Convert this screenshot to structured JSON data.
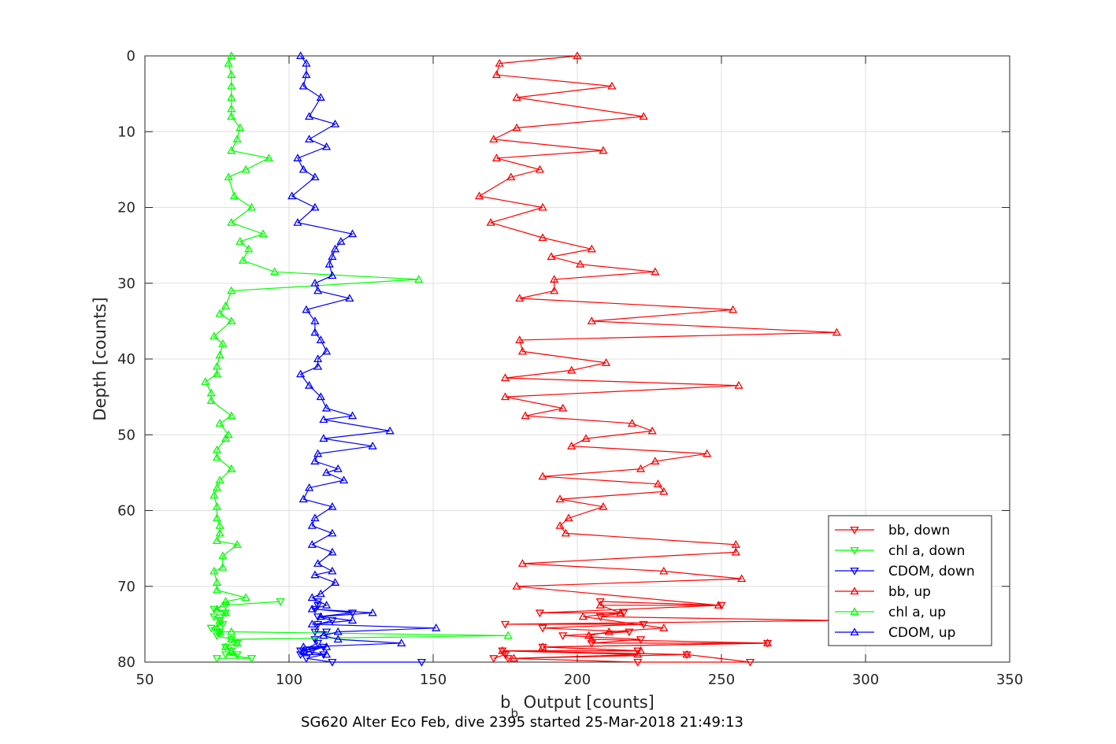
{
  "chart_data": {
    "type": "line",
    "title": "",
    "xlabel": "b",
    "xlabel_sub": "b",
    "xlabel_rest": " Output [counts]",
    "ylabel": "Depth [counts]",
    "caption": "SG620 Alter Eco Feb, dive 2395 started 25-Mar-2018 21:49:13",
    "xlim": [
      50,
      350
    ],
    "ylim": [
      0,
      80
    ],
    "y_reversed": true,
    "xticks": [
      50,
      100,
      150,
      200,
      250,
      300,
      350
    ],
    "yticks": [
      0,
      10,
      20,
      30,
      40,
      50,
      60,
      70,
      80
    ],
    "grid": true,
    "legend_position": "bottom-right",
    "series": [
      {
        "name": "bb, down",
        "color": "#ff0000",
        "marker": "triangle-down",
        "points": [
          [
            171,
            79.5
          ],
          [
            175,
            79
          ],
          [
            176,
            79.5
          ],
          [
            221,
            80
          ],
          [
            260,
            80
          ],
          [
            238,
            79
          ],
          [
            174,
            78.5
          ],
          [
            221,
            78.5
          ],
          [
            188,
            78
          ],
          [
            266,
            77.5
          ],
          [
            205,
            77.5
          ],
          [
            222,
            77
          ],
          [
            195,
            76.5
          ],
          [
            218,
            76
          ],
          [
            188,
            75.5
          ],
          [
            223,
            75
          ],
          [
            175,
            75
          ],
          [
            290,
            74.5
          ],
          [
            208,
            74
          ],
          [
            216,
            73.5
          ],
          [
            187,
            73.5
          ],
          [
            250,
            72.5
          ],
          [
            208,
            72
          ]
        ]
      },
      {
        "name": "chl a, down",
        "color": "#00ff00",
        "marker": "triangle-down",
        "points": [
          [
            75,
            79.5
          ],
          [
            87,
            79.5
          ],
          [
            78,
            79
          ],
          [
            82,
            79
          ],
          [
            80,
            78.5
          ],
          [
            78,
            78
          ],
          [
            82,
            77.5
          ],
          [
            80,
            77
          ],
          [
            75,
            76.5
          ],
          [
            76,
            76
          ],
          [
            73,
            75.5
          ],
          [
            77,
            75
          ],
          [
            76,
            74.5
          ],
          [
            74,
            74
          ],
          [
            78,
            73.5
          ],
          [
            74,
            73
          ],
          [
            78,
            72.5
          ],
          [
            97,
            72
          ]
        ]
      },
      {
        "name": "CDOM, down",
        "color": "#0000ff",
        "marker": "triangle-down",
        "points": [
          [
            146,
            80
          ],
          [
            115,
            80
          ],
          [
            106,
            79.5
          ],
          [
            112,
            79
          ],
          [
            104,
            79
          ],
          [
            108,
            78.5
          ],
          [
            112,
            78
          ],
          [
            104,
            78.5
          ],
          [
            110,
            77.5
          ],
          [
            109,
            77
          ],
          [
            113,
            76
          ],
          [
            109,
            76
          ],
          [
            110,
            75
          ],
          [
            115,
            74.5
          ],
          [
            110,
            74
          ],
          [
            122,
            73.5
          ],
          [
            109,
            73
          ],
          [
            110,
            72.5
          ],
          [
            110,
            72
          ]
        ]
      },
      {
        "name": "bb, up",
        "color": "#ff0000",
        "marker": "triangle-up",
        "points": [
          [
            200,
            0
          ],
          [
            173,
            1
          ],
          [
            172,
            2.5
          ],
          [
            212,
            4
          ],
          [
            179,
            5.5
          ],
          [
            223,
            8
          ],
          [
            179,
            9.5
          ],
          [
            171,
            11
          ],
          [
            209,
            12.5
          ],
          [
            172,
            13.5
          ],
          [
            187,
            15
          ],
          [
            177,
            16
          ],
          [
            166,
            18.5
          ],
          [
            188,
            20
          ],
          [
            170,
            22
          ],
          [
            188,
            24
          ],
          [
            205,
            25.5
          ],
          [
            191,
            26.5
          ],
          [
            201,
            27.5
          ],
          [
            227,
            28.5
          ],
          [
            192,
            29.5
          ],
          [
            192,
            31
          ],
          [
            180,
            32
          ],
          [
            254,
            33.5
          ],
          [
            205,
            35
          ],
          [
            290,
            36.5
          ],
          [
            180,
            37.5
          ],
          [
            181,
            39
          ],
          [
            210,
            40.5
          ],
          [
            198,
            41.5
          ],
          [
            175,
            42.5
          ],
          [
            256,
            43.5
          ],
          [
            175,
            45
          ],
          [
            195,
            46.5
          ],
          [
            182,
            47.5
          ],
          [
            219,
            48.5
          ],
          [
            226,
            49.5
          ],
          [
            203,
            50.5
          ],
          [
            198,
            51.5
          ],
          [
            245,
            52.5
          ],
          [
            227,
            53.5
          ],
          [
            222,
            54.5
          ],
          [
            188,
            55.5
          ],
          [
            228,
            56.5
          ],
          [
            230,
            57.5
          ],
          [
            194,
            58.5
          ],
          [
            209,
            59.5
          ],
          [
            197,
            61
          ],
          [
            194,
            62
          ],
          [
            196,
            63
          ],
          [
            255,
            64.5
          ],
          [
            255,
            65.5
          ],
          [
            181,
            67
          ],
          [
            230,
            68
          ],
          [
            257,
            69
          ],
          [
            179,
            70
          ],
          [
            249,
            72.5
          ],
          [
            208,
            72.5
          ],
          [
            215,
            73.5
          ],
          [
            202,
            74
          ],
          [
            230,
            75.5
          ],
          [
            211,
            76
          ],
          [
            204,
            76.5
          ],
          [
            205,
            77
          ],
          [
            266,
            77.5
          ],
          [
            188,
            78
          ],
          [
            222,
            78.5
          ],
          [
            174,
            78.5
          ],
          [
            221,
            79
          ],
          [
            178,
            79.5
          ],
          [
            238,
            79
          ]
        ]
      },
      {
        "name": "chl a, up",
        "color": "#00ff00",
        "marker": "triangle-up",
        "points": [
          [
            80,
            0
          ],
          [
            79,
            1
          ],
          [
            80,
            2.5
          ],
          [
            80,
            4
          ],
          [
            80,
            5.5
          ],
          [
            80,
            7
          ],
          [
            80,
            8
          ],
          [
            83,
            9.5
          ],
          [
            82,
            11
          ],
          [
            80,
            12.5
          ],
          [
            93,
            13.5
          ],
          [
            85,
            15
          ],
          [
            79,
            16
          ],
          [
            81,
            18.5
          ],
          [
            87,
            20
          ],
          [
            80,
            22
          ],
          [
            91,
            23.5
          ],
          [
            83,
            24.5
          ],
          [
            86,
            25.5
          ],
          [
            84,
            27
          ],
          [
            95,
            28.5
          ],
          [
            145,
            29.5
          ],
          [
            80,
            31
          ],
          [
            78,
            33
          ],
          [
            76,
            34
          ],
          [
            80,
            35
          ],
          [
            74,
            37
          ],
          [
            77,
            38
          ],
          [
            76,
            39.5
          ],
          [
            75,
            41
          ],
          [
            75,
            42
          ],
          [
            71,
            43
          ],
          [
            73,
            44.5
          ],
          [
            73,
            45.5
          ],
          [
            80,
            47.5
          ],
          [
            76,
            48.5
          ],
          [
            79,
            50
          ],
          [
            78,
            50.5
          ],
          [
            75,
            52
          ],
          [
            75,
            53
          ],
          [
            80,
            54.5
          ],
          [
            76,
            56
          ],
          [
            75,
            57
          ],
          [
            74,
            58
          ],
          [
            75,
            59.5
          ],
          [
            75,
            61
          ],
          [
            76,
            62
          ],
          [
            76,
            63
          ],
          [
            75,
            64
          ],
          [
            82,
            64.5
          ],
          [
            77,
            66
          ],
          [
            77,
            67.5
          ],
          [
            74,
            68
          ],
          [
            75,
            69.5
          ],
          [
            75,
            70.5
          ],
          [
            85,
            71.5
          ],
          [
            78,
            72
          ],
          [
            75,
            73
          ],
          [
            78,
            73.5
          ],
          [
            76,
            74.5
          ],
          [
            75,
            75.5
          ],
          [
            76,
            76
          ],
          [
            80,
            76
          ],
          [
            176,
            76.5
          ],
          [
            80,
            77
          ],
          [
            82,
            77.5
          ],
          [
            78,
            78
          ],
          [
            80,
            78.5
          ]
        ]
      },
      {
        "name": "CDOM, up",
        "color": "#0000ff",
        "marker": "triangle-up",
        "points": [
          [
            104,
            0
          ],
          [
            106,
            1
          ],
          [
            106,
            2.5
          ],
          [
            105,
            4
          ],
          [
            111,
            5.5
          ],
          [
            107,
            8
          ],
          [
            116,
            9
          ],
          [
            107,
            11
          ],
          [
            113,
            12
          ],
          [
            103,
            13.5
          ],
          [
            105,
            15
          ],
          [
            109,
            16
          ],
          [
            101,
            18.5
          ],
          [
            109,
            20
          ],
          [
            103,
            22
          ],
          [
            122,
            23.5
          ],
          [
            118,
            24.5
          ],
          [
            116,
            25.5
          ],
          [
            115,
            26.5
          ],
          [
            114,
            27.5
          ],
          [
            115,
            29
          ],
          [
            109,
            30
          ],
          [
            110,
            31
          ],
          [
            121,
            32
          ],
          [
            106,
            33.5
          ],
          [
            109,
            35
          ],
          [
            109,
            36.5
          ],
          [
            111,
            37.5
          ],
          [
            113,
            39
          ],
          [
            110,
            40
          ],
          [
            110,
            41
          ],
          [
            104,
            42
          ],
          [
            107,
            43.5
          ],
          [
            111,
            45
          ],
          [
            113,
            46.5
          ],
          [
            122,
            47.5
          ],
          [
            112,
            48
          ],
          [
            135,
            49.5
          ],
          [
            112,
            50.5
          ],
          [
            129,
            51.5
          ],
          [
            110,
            52.5
          ],
          [
            109,
            53.5
          ],
          [
            117,
            54.5
          ],
          [
            113,
            55
          ],
          [
            119,
            56
          ],
          [
            107,
            57
          ],
          [
            105,
            58.5
          ],
          [
            115,
            59.5
          ],
          [
            109,
            61
          ],
          [
            108,
            62
          ],
          [
            115,
            63
          ],
          [
            108,
            64.5
          ],
          [
            115,
            65.5
          ],
          [
            110,
            67
          ],
          [
            115,
            68
          ],
          [
            109,
            68.5
          ],
          [
            116,
            69.5
          ],
          [
            111,
            71
          ],
          [
            108,
            71.5
          ],
          [
            113,
            72.5
          ],
          [
            108,
            73
          ],
          [
            129,
            73.5
          ],
          [
            111,
            74
          ],
          [
            122,
            74.5
          ],
          [
            108,
            75
          ],
          [
            151,
            75.5
          ],
          [
            117,
            76
          ],
          [
            112,
            76.5
          ],
          [
            117,
            77
          ],
          [
            139,
            77.5
          ],
          [
            105,
            78
          ],
          [
            113,
            78
          ],
          [
            105,
            78.5
          ],
          [
            113,
            79
          ]
        ]
      }
    ]
  }
}
